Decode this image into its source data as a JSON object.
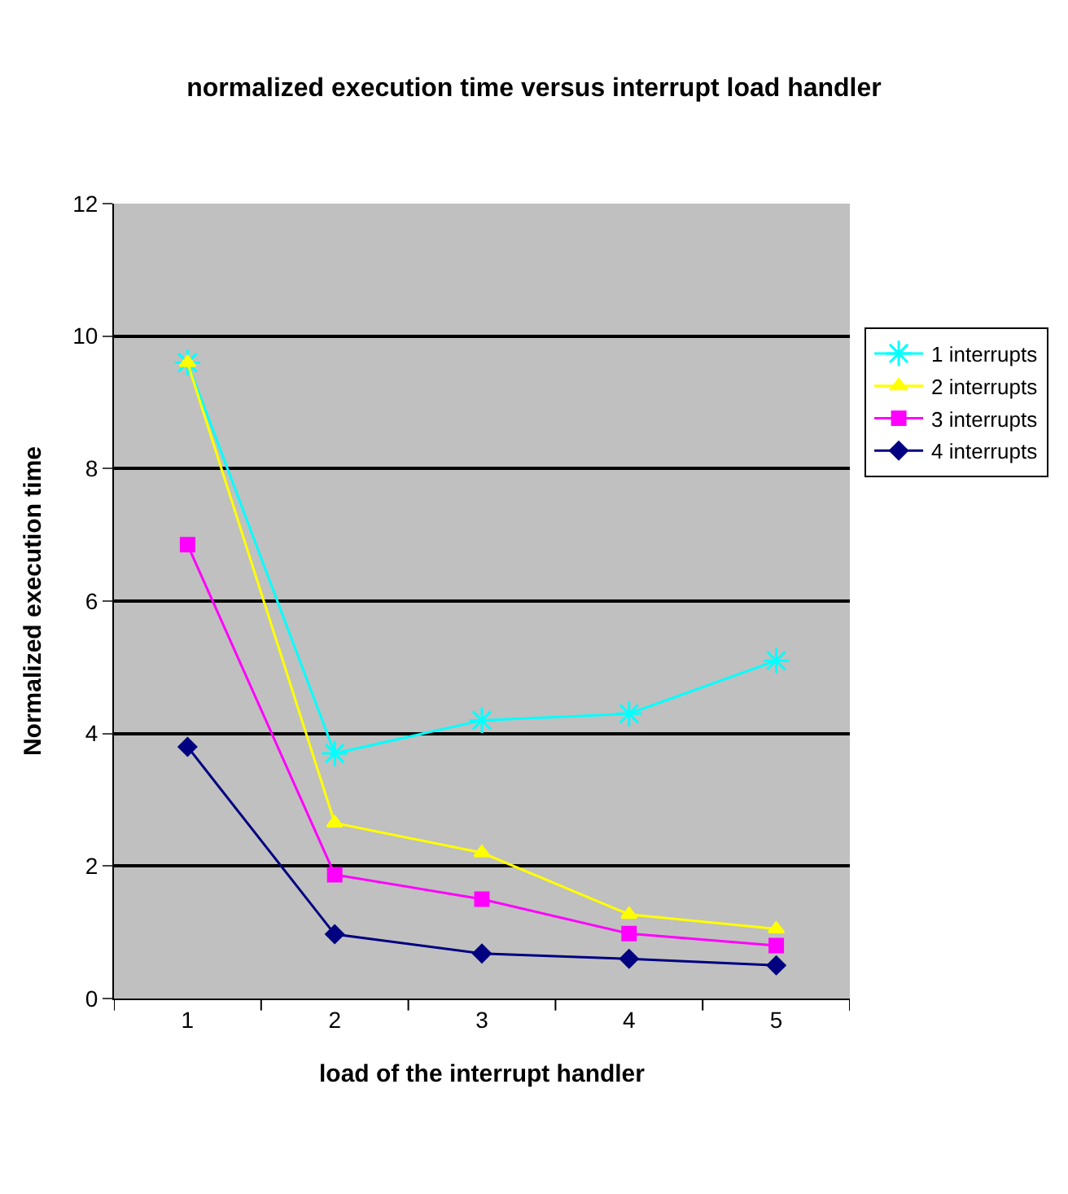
{
  "chart_data": {
    "type": "line",
    "title": "normalized execution time versus interrupt load handler",
    "xlabel": "load of the interrupt handler",
    "ylabel": "Normalized execution time",
    "categories": [
      "1",
      "2",
      "3",
      "4",
      "5"
    ],
    "series": [
      {
        "name": "1 interrupts",
        "color": "#00ffff",
        "marker": "cross",
        "values": [
          9.6,
          3.7,
          4.2,
          4.3,
          5.1
        ]
      },
      {
        "name": "2 interrupts",
        "color": "#ffff00",
        "marker": "triangle",
        "values": [
          9.6,
          2.65,
          2.2,
          1.27,
          1.05
        ]
      },
      {
        "name": "3 interrupts",
        "color": "#ff00ff",
        "marker": "square",
        "values": [
          6.85,
          1.87,
          1.5,
          0.98,
          0.8
        ]
      },
      {
        "name": "4 interrupts",
        "color": "#000080",
        "marker": "diamond",
        "values": [
          3.8,
          0.97,
          0.68,
          0.6,
          0.5
        ]
      }
    ],
    "ylim": [
      0,
      12
    ],
    "yticks": [
      0,
      2,
      4,
      6,
      8,
      10,
      12
    ],
    "grid": "y",
    "legend": "right",
    "line_style": "solid"
  }
}
